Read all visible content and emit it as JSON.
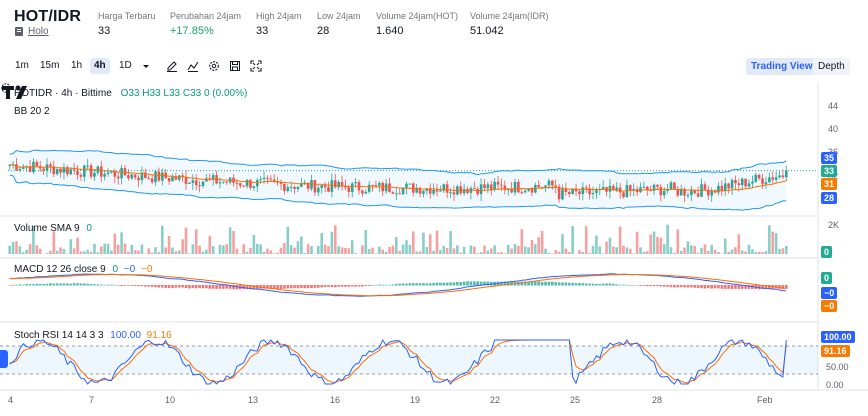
{
  "header": {
    "pair": "HOT/IDR",
    "exchange": "Holo",
    "stats": [
      {
        "label": "Harga Terbaru",
        "value": "33",
        "up": false
      },
      {
        "label": "Perubahan 24jam",
        "value": "+17.85%",
        "up": true
      },
      {
        "label": "High 24jam",
        "value": "33",
        "up": false
      },
      {
        "label": "Low 24jam",
        "value": "28",
        "up": false
      },
      {
        "label": "Volume 24jam(HOT)",
        "value": "1.640",
        "up": false
      },
      {
        "label": "Volume 24jam(IDR)",
        "value": "51.042",
        "up": false
      }
    ]
  },
  "toolbar": {
    "timeframes": [
      "1m",
      "15m",
      "1h",
      "4h",
      "1D"
    ],
    "active_timeframe": "4h",
    "trading_view": "Trading View",
    "depth": "Depth",
    "icons": [
      "chevron-down-icon",
      "draw-icon",
      "indicators-icon",
      "settings-icon",
      "snapshot-icon",
      "fullscreen-icon"
    ]
  },
  "legends": {
    "symbol": "HOTIDR · 4h · Bittime",
    "ohlc": "O33 H33 L33 C33 0 (0.00%)",
    "bb": "BB 20 2",
    "volume": "Volume SMA 9",
    "volume_value": "0",
    "macd": "MACD 12 26 close 9",
    "macd_values": [
      "0",
      "−0",
      "−0"
    ],
    "stoch": "Stoch RSI 14 14 3 3",
    "stoch_k": "100.00",
    "stoch_d": "91.16"
  },
  "axes": {
    "price_ticks": [
      "44",
      "40",
      "36",
      "32",
      "28"
    ],
    "volume_ticks": [
      "2K",
      "0"
    ],
    "stoch_ticks": [
      "100.00",
      "50.00",
      "0.00"
    ],
    "price_badges": [
      {
        "value": "35",
        "color": "#2962ff"
      },
      {
        "value": "33",
        "color": "#22ab94"
      },
      {
        "value": "31",
        "color": "#f57c00"
      },
      {
        "value": "28",
        "color": "#2962ff"
      }
    ],
    "volume_badge": "0",
    "macd_badges": [
      {
        "value": "0",
        "color": "#22ab94"
      },
      {
        "value": "−0",
        "color": "#2962ff"
      },
      {
        "value": "−0",
        "color": "#f57c00"
      }
    ],
    "stoch_badges": [
      {
        "value": "100.00",
        "color": "#2962ff"
      },
      {
        "value": "91.16",
        "color": "#f57c00"
      }
    ],
    "x_labels": [
      "4",
      "7",
      "10",
      "13",
      "16",
      "19",
      "22",
      "25",
      "28",
      "Feb"
    ]
  },
  "chart_data": {
    "type": "candlestick",
    "title": "HOTIDR · 4h · Bittime",
    "ylim": [
      26,
      46
    ],
    "last_close": 33,
    "bb_upper_last": 35,
    "bb_basis_last": 31,
    "bb_lower_last": 28,
    "stoch_rsi_k_last": 100.0,
    "stoch_rsi_d_last": 91.16,
    "volume_ylim": [
      0,
      2000
    ],
    "stoch_ylim": [
      0,
      100
    ],
    "colors": {
      "up": "#26a69a",
      "down": "#ef5350",
      "bb": "#2196f3",
      "basis": "#ff6d00"
    }
  }
}
